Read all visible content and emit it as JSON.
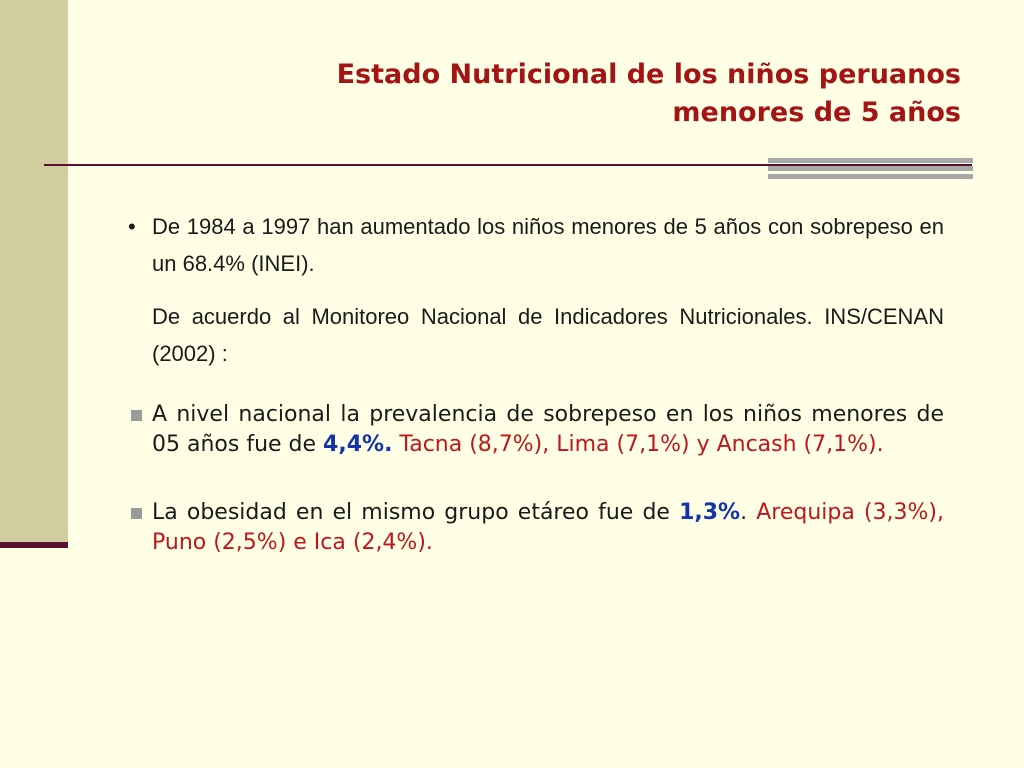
{
  "slide": {
    "title_line1": "Estado Nutricional de los niños peruanos",
    "title_line2": "menores de 5 años",
    "bullet1": {
      "marker": "•",
      "text": "De 1984 a 1997 han aumentado los  niños menores de 5 años con sobrepeso en un 68.4% (INEI)."
    },
    "paragraph2": "De acuerdo al Monitoreo Nacional de Indicadores Nutricionales. INS/CENAN (2002) :",
    "sub1": {
      "text": "A nivel nacional la prevalencia de sobrepeso en los niños menores de 05 años fue de ",
      "highlight": "4,4%.",
      "regions": " Tacna (8,7%), Lima (7,1%) y Ancash (7,1%)."
    },
    "sub2": {
      "text": "La obesidad en el mismo grupo etáreo fue de ",
      "highlight": "1,3%",
      "after": ". ",
      "regions": "Arequipa (3,3%), Puno (2,5%) e Ica (2,4%)."
    },
    "colors": {
      "background": "#ffffe5",
      "side_band": "#d2cd9e",
      "title": "#a31515",
      "divider": "#5a0f2e",
      "highlight_blue": "#1435a8",
      "region_red": "#c0161b"
    }
  }
}
